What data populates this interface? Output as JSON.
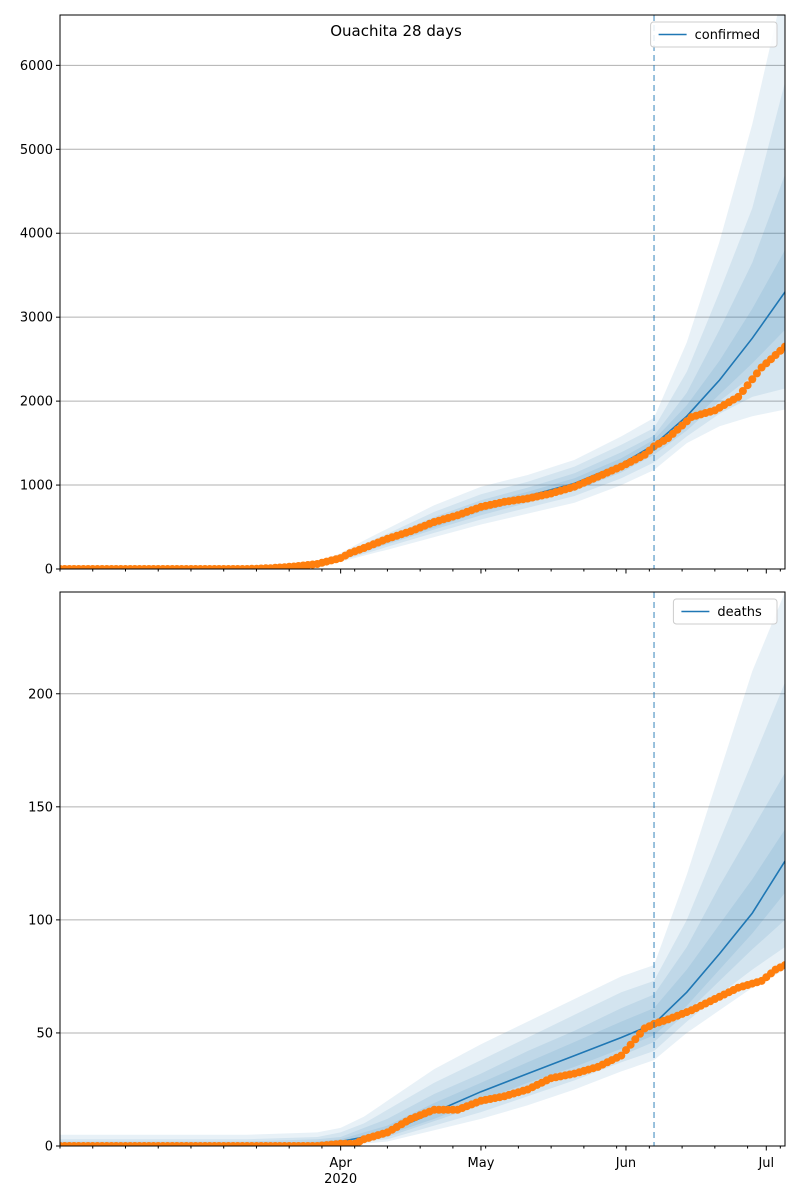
{
  "colors": {
    "model": "#1f77b4",
    "observed": "#ff7f0e",
    "band": "#1f77b4",
    "grid": "#b0b0b0",
    "vline": "#1f77b4"
  },
  "chart_data": [
    {
      "type": "line",
      "title": "Ouachita 28 days",
      "legend": [
        "confirmed"
      ],
      "legend_position": "top-right",
      "grid": "horizontal",
      "x_range": [
        "2020-02-01",
        "2020-07-05"
      ],
      "xlim": [
        0,
        155
      ],
      "ylim": [
        0,
        6600
      ],
      "y_ticks": [
        0,
        1000,
        2000,
        3000,
        4000,
        5000,
        6000
      ],
      "x_ticks": [
        {
          "day": 60,
          "label": "Apr",
          "sublabel": "2020"
        },
        {
          "day": 90,
          "label": "May",
          "sublabel": ""
        },
        {
          "day": 121,
          "label": "Jun",
          "sublabel": ""
        },
        {
          "day": 151,
          "label": "Jul",
          "sublabel": ""
        }
      ],
      "vline_day": 127,
      "model": {
        "days": [
          0,
          50,
          55,
          60,
          65,
          70,
          80,
          90,
          100,
          110,
          120,
          127,
          134,
          141,
          148,
          155
        ],
        "values": [
          0,
          10,
          50,
          130,
          230,
          330,
          530,
          720,
          870,
          1020,
          1250,
          1480,
          1820,
          2250,
          2750,
          3300
        ]
      },
      "bands": [
        {
          "upper": [
            25,
            30,
            80,
            190,
            340,
            480,
            760,
            980,
            1120,
            1300,
            1580,
            1800,
            2700,
            3900,
            5300,
            7000
          ],
          "lower": [
            0,
            0,
            20,
            85,
            160,
            230,
            380,
            530,
            660,
            790,
            1000,
            1180,
            1500,
            1700,
            1820,
            1900
          ]
        },
        {
          "upper": [
            15,
            22,
            70,
            170,
            300,
            420,
            680,
            890,
            1040,
            1220,
            1480,
            1680,
            2350,
            3300,
            4300,
            5800
          ],
          "lower": [
            0,
            2,
            30,
            100,
            180,
            265,
            430,
            590,
            730,
            870,
            1080,
            1270,
            1580,
            1850,
            2050,
            2150
          ]
        },
        {
          "upper": [
            8,
            16,
            62,
            155,
            270,
            380,
            620,
            820,
            970,
            1140,
            1390,
            1590,
            2100,
            2850,
            3650,
            4700
          ],
          "lower": [
            0,
            5,
            38,
            110,
            200,
            295,
            470,
            640,
            790,
            930,
            1150,
            1360,
            1650,
            2000,
            2300,
            2600
          ]
        },
        {
          "upper": [
            4,
            13,
            56,
            142,
            248,
            352,
            570,
            770,
            920,
            1080,
            1320,
            1540,
            1950,
            2480,
            3100,
            3800
          ],
          "lower": [
            0,
            7,
            44,
            120,
            212,
            310,
            495,
            680,
            825,
            970,
            1190,
            1420,
            1700,
            2080,
            2450,
            2850
          ]
        }
      ],
      "observed": {
        "days": [
          0,
          40,
          45,
          50,
          55,
          60,
          62,
          65,
          70,
          75,
          80,
          85,
          90,
          95,
          100,
          105,
          110,
          115,
          120,
          125,
          127,
          130,
          135,
          140,
          145,
          150,
          155
        ],
        "values": [
          0,
          0,
          10,
          30,
          60,
          130,
          190,
          250,
          360,
          450,
          560,
          640,
          740,
          800,
          840,
          900,
          980,
          1100,
          1220,
          1360,
          1460,
          1560,
          1810,
          1890,
          2050,
          2400,
          2650
        ]
      }
    },
    {
      "type": "line",
      "title": "",
      "legend": [
        "deaths"
      ],
      "legend_position": "top-right",
      "grid": "horizontal",
      "x_range": [
        "2020-02-01",
        "2020-07-05"
      ],
      "xlim": [
        0,
        155
      ],
      "ylim": [
        0,
        245
      ],
      "y_ticks": [
        0,
        50,
        100,
        150,
        200
      ],
      "x_ticks": [
        {
          "day": 60,
          "label": "Apr",
          "sublabel": "2020"
        },
        {
          "day": 90,
          "label": "May",
          "sublabel": ""
        },
        {
          "day": 121,
          "label": "Jun",
          "sublabel": ""
        },
        {
          "day": 151,
          "label": "Jul",
          "sublabel": ""
        }
      ],
      "vline_day": 127,
      "model": {
        "days": [
          0,
          40,
          55,
          60,
          65,
          70,
          80,
          90,
          100,
          110,
          120,
          127,
          134,
          141,
          148,
          155
        ],
        "values": [
          0,
          0,
          1,
          2,
          4,
          6,
          15,
          24,
          32,
          40,
          48,
          54,
          68,
          85,
          103,
          126
        ]
      },
      "bands": [
        {
          "upper": [
            5,
            5,
            6,
            8,
            13,
            20,
            34,
            45,
            55,
            65,
            75,
            80,
            120,
            165,
            210,
            245
          ],
          "lower": [
            0,
            0,
            0,
            0,
            1,
            2,
            7,
            12,
            18,
            25,
            33,
            38,
            50,
            60,
            70,
            78
          ]
        },
        {
          "upper": [
            3,
            3,
            4,
            6,
            10,
            16,
            28,
            38,
            48,
            58,
            68,
            73,
            100,
            135,
            170,
            205
          ],
          "lower": [
            0,
            0,
            0,
            0,
            2,
            3,
            9,
            15,
            22,
            29,
            37,
            42,
            55,
            67,
            78,
            88
          ]
        },
        {
          "upper": [
            2,
            2,
            3,
            4,
            8,
            12,
            23,
            32,
            42,
            51,
            61,
            67,
            88,
            115,
            140,
            165
          ],
          "lower": [
            0,
            0,
            0,
            1,
            2,
            4,
            11,
            18,
            25,
            32,
            40,
            46,
            59,
            73,
            87,
            100
          ]
        },
        {
          "upper": [
            1,
            1,
            2,
            3,
            6,
            9,
            19,
            28,
            37,
            46,
            55,
            61,
            78,
            98,
            118,
            140
          ],
          "lower": [
            0,
            0,
            0,
            1,
            3,
            5,
            12,
            20,
            28,
            35,
            43,
            49,
            62,
            78,
            94,
            112
          ]
        }
      ],
      "observed": {
        "days": [
          0,
          55,
          60,
          63,
          65,
          70,
          75,
          80,
          85,
          90,
          95,
          100,
          105,
          110,
          115,
          120,
          125,
          127,
          130,
          135,
          140,
          145,
          150,
          153,
          155
        ],
        "values": [
          0,
          0,
          1,
          1,
          3,
          6,
          12,
          16,
          16,
          20,
          22,
          25,
          30,
          32,
          35,
          40,
          52,
          54,
          56,
          60,
          65,
          70,
          73,
          78,
          80
        ]
      }
    }
  ]
}
